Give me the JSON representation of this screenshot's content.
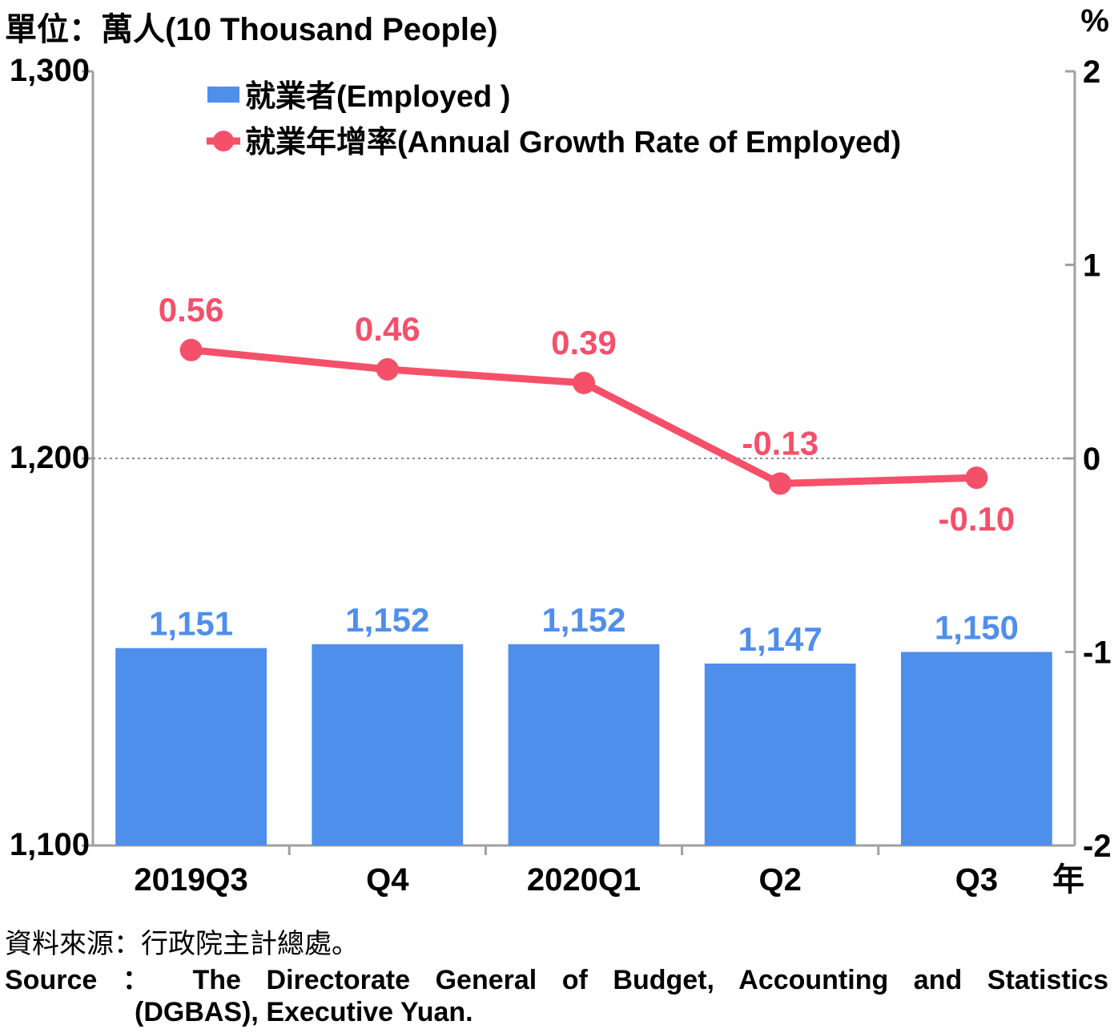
{
  "header": {
    "left_unit": "單位：萬人(10 Thousand People)",
    "right_unit": "%"
  },
  "colors": {
    "bar": "#4f8fec",
    "line": "#f5506a",
    "axis": "#a0a0a0",
    "bar_label": "#4f8fec",
    "line_label": "#f5506a"
  },
  "chart_data": {
    "type": "bar+line",
    "categories": [
      "2019Q3",
      "Q4",
      "2020Q1",
      "Q2",
      "Q3"
    ],
    "x_unit_label": "年",
    "series": [
      {
        "name": "就業者(Employed )",
        "type": "bar",
        "axis": "left",
        "values": [
          1151,
          1152,
          1152,
          1147,
          1150
        ],
        "labels": [
          "1,151",
          "1,152",
          "1,152",
          "1,147",
          "1,150"
        ]
      },
      {
        "name": "就業年增率(Annual Growth Rate of Employed)",
        "type": "line",
        "axis": "right",
        "values": [
          0.56,
          0.46,
          0.39,
          -0.13,
          -0.1
        ],
        "labels": [
          "0.56",
          "0.46",
          "0.39",
          "-0.13",
          "-0.10"
        ]
      }
    ],
    "left_axis": {
      "ylim": [
        1100,
        1300
      ],
      "ticks": [
        1100,
        1200,
        1300
      ],
      "tick_labels": [
        "1,100",
        "1,200",
        "1,300"
      ]
    },
    "right_axis": {
      "ylim": [
        -2,
        2
      ],
      "ticks": [
        -2,
        -1,
        0,
        1,
        2
      ],
      "tick_labels": [
        "-2",
        "-1",
        "0",
        "1",
        "2"
      ]
    },
    "zero_line": "dotted",
    "legend_position": "top-left"
  },
  "source": {
    "chinese": "資料來源：行政院主計總處。",
    "english_line1": "Source ： The Directorate General of Budget, Accounting and Statistics",
    "english_line2": "(DGBAS), Executive Yuan."
  }
}
